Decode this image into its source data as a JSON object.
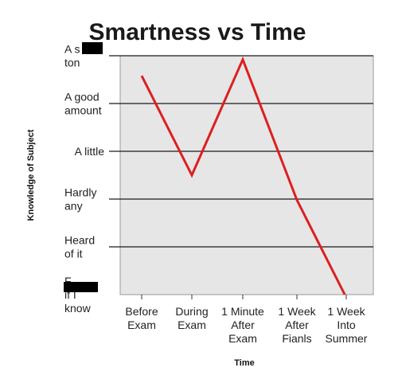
{
  "chart_data": {
    "type": "line",
    "title": "Smartness vs Time",
    "xlabel": "Time",
    "ylabel": "Knowledge of Subject",
    "categories": [
      [
        "Before",
        "Exam"
      ],
      [
        "During",
        "Exam"
      ],
      [
        "1 Minute",
        "After",
        "Exam"
      ],
      [
        "1 Week",
        "After",
        "Fianls"
      ],
      [
        "1 Week",
        "Into",
        "Summer"
      ]
    ],
    "y_levels": [
      [
        "F",
        "if I",
        "know"
      ],
      [
        "Heard",
        "of it"
      ],
      [
        "Hardly",
        "any"
      ],
      [
        "A little"
      ],
      [
        "A good",
        "amount"
      ],
      [
        "A s",
        "ton"
      ]
    ],
    "ylim": [
      0,
      5
    ],
    "series": [
      {
        "color": "#dd1f1f",
        "points": [
          {
            "x": 0,
            "y": 4.58
          },
          {
            "x": 1,
            "y": 2.5
          },
          {
            "x": 2,
            "y": 4.92
          },
          {
            "x": 3,
            "y": 1.98
          },
          {
            "x": 3.97,
            "y": 0
          }
        ]
      }
    ],
    "grid": true,
    "plot_background": "#e6e6e6",
    "gridline_color": "#1a1a1a",
    "censor_color": "#000000"
  }
}
